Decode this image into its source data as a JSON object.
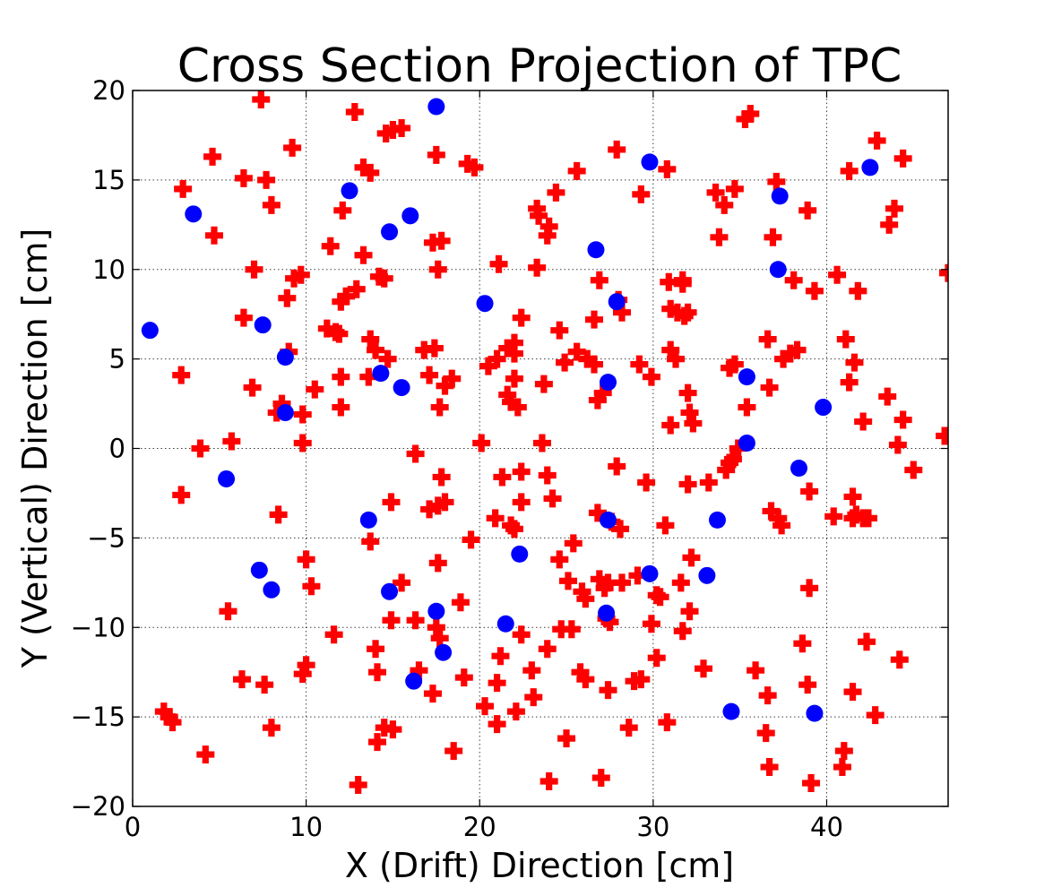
{
  "chart_data": {
    "type": "scatter",
    "title": "Cross Section Projection of TPC",
    "xlabel": "X (Drift) Direction [cm]",
    "ylabel": "Y (Vertical) Direction [cm]",
    "xlim": [
      0,
      47
    ],
    "ylim": [
      -20,
      20
    ],
    "x_ticks": [
      0,
      10,
      20,
      30,
      40
    ],
    "y_ticks": [
      -20,
      -15,
      -10,
      -5,
      0,
      5,
      10,
      15,
      20
    ],
    "x_tick_labels": [
      "0",
      "10",
      "20",
      "30",
      "40"
    ],
    "y_tick_labels": [
      "−20",
      "−15",
      "−10",
      "−5",
      "0",
      "5",
      "10",
      "15",
      "20"
    ],
    "grid": true,
    "legend": "none",
    "series": [
      {
        "marker": "plus",
        "color": "#ff0000",
        "points": [
          [
            7.4,
            19.5
          ],
          [
            12.8,
            18.8
          ],
          [
            14.6,
            17.6
          ],
          [
            15.0,
            17.8
          ],
          [
            15.5,
            17.9
          ],
          [
            17.5,
            16.4
          ],
          [
            9.2,
            16.8
          ],
          [
            4.6,
            16.3
          ],
          [
            6.4,
            15.1
          ],
          [
            7.7,
            15.0
          ],
          [
            13.3,
            15.7
          ],
          [
            13.7,
            15.4
          ],
          [
            19.3,
            15.9
          ],
          [
            19.7,
            15.7
          ],
          [
            2.9,
            14.5
          ],
          [
            8.0,
            13.6
          ],
          [
            12.1,
            13.3
          ],
          [
            23.3,
            13.4
          ],
          [
            23.4,
            13.0
          ],
          [
            24.4,
            14.3
          ],
          [
            24.0,
            12.4
          ],
          [
            23.9,
            11.9
          ],
          [
            17.3,
            11.5
          ],
          [
            17.8,
            11.6
          ],
          [
            4.7,
            11.9
          ],
          [
            11.4,
            11.3
          ],
          [
            13.3,
            10.8
          ],
          [
            7.0,
            10.0
          ],
          [
            9.3,
            9.5
          ],
          [
            9.7,
            9.7
          ],
          [
            17.6,
            10.0
          ],
          [
            21.1,
            10.3
          ],
          [
            23.3,
            10.1
          ],
          [
            14.5,
            9.5
          ],
          [
            14.2,
            9.6
          ],
          [
            8.9,
            8.4
          ],
          [
            12.0,
            8.2
          ],
          [
            12.3,
            8.5
          ],
          [
            12.9,
            8.9
          ],
          [
            6.4,
            7.3
          ],
          [
            11.2,
            6.7
          ],
          [
            11.7,
            6.5
          ],
          [
            11.9,
            6.4
          ],
          [
            13.7,
            6.1
          ],
          [
            14.0,
            5.5
          ],
          [
            16.8,
            5.5
          ],
          [
            17.4,
            5.6
          ],
          [
            21.6,
            5.6
          ],
          [
            22.0,
            5.9
          ],
          [
            22.0,
            5.3
          ],
          [
            22.4,
            7.3
          ],
          [
            24.6,
            6.6
          ],
          [
            14.7,
            5.0
          ],
          [
            9.0,
            5.4
          ],
          [
            6.9,
            3.4
          ],
          [
            12.0,
            4.0
          ],
          [
            13.6,
            4.0
          ],
          [
            17.1,
            4.1
          ],
          [
            18.0,
            3.5
          ],
          [
            18.4,
            3.9
          ],
          [
            20.5,
            4.6
          ],
          [
            21.0,
            5.0
          ],
          [
            21.6,
            3.0
          ],
          [
            21.8,
            2.6
          ],
          [
            22.0,
            3.9
          ],
          [
            22.2,
            2.3
          ],
          [
            23.7,
            3.6
          ],
          [
            24.9,
            4.8
          ],
          [
            25.6,
            5.4
          ],
          [
            26.2,
            5.0
          ],
          [
            26.6,
            4.7
          ],
          [
            2.8,
            4.1
          ],
          [
            8.6,
            2.5
          ],
          [
            8.3,
            2.0
          ],
          [
            9.8,
            1.9
          ],
          [
            10.5,
            3.3
          ],
          [
            12.0,
            2.3
          ],
          [
            17.7,
            2.3
          ],
          [
            9.8,
            0.3
          ],
          [
            5.7,
            0.4
          ],
          [
            3.9,
            0.0
          ],
          [
            16.3,
            -0.3
          ],
          [
            20.1,
            0.3
          ],
          [
            23.6,
            0.3
          ],
          [
            2.8,
            -2.6
          ],
          [
            8.4,
            -3.7
          ],
          [
            14.9,
            -3.0
          ],
          [
            17.1,
            -3.4
          ],
          [
            17.6,
            -3.2
          ],
          [
            17.8,
            -1.6
          ],
          [
            18.0,
            -3.0
          ],
          [
            20.9,
            -3.9
          ],
          [
            21.3,
            -1.6
          ],
          [
            22.4,
            -1.3
          ],
          [
            22.4,
            -3.0
          ],
          [
            23.9,
            -1.5
          ],
          [
            24.2,
            -2.8
          ],
          [
            21.8,
            -4.3
          ],
          [
            22.0,
            -4.5
          ],
          [
            25.4,
            -5.3
          ],
          [
            19.5,
            -5.1
          ],
          [
            13.7,
            -5.2
          ],
          [
            5.5,
            -9.1
          ],
          [
            10.0,
            -6.2
          ],
          [
            10.3,
            -7.7
          ],
          [
            15.5,
            -7.5
          ],
          [
            17.6,
            -6.4
          ],
          [
            24.6,
            -6.2
          ],
          [
            25.1,
            -7.4
          ],
          [
            25.9,
            -8.0
          ],
          [
            26.1,
            -8.4
          ],
          [
            26.9,
            -7.3
          ],
          [
            27.2,
            -7.8
          ],
          [
            14.9,
            -9.6
          ],
          [
            16.3,
            -9.6
          ],
          [
            17.5,
            -10.0
          ],
          [
            17.7,
            -10.6
          ],
          [
            18.9,
            -8.6
          ],
          [
            11.6,
            -10.4
          ],
          [
            14.0,
            -11.2
          ],
          [
            21.2,
            -11.6
          ],
          [
            22.4,
            -10.4
          ],
          [
            23.9,
            -11.2
          ],
          [
            24.7,
            -10.1
          ],
          [
            25.3,
            -10.1
          ],
          [
            10.0,
            -12.1
          ],
          [
            9.8,
            -12.6
          ],
          [
            6.3,
            -12.9
          ],
          [
            7.6,
            -13.2
          ],
          [
            14.1,
            -12.5
          ],
          [
            16.5,
            -12.4
          ],
          [
            17.3,
            -13.7
          ],
          [
            19.1,
            -12.8
          ],
          [
            21.0,
            -13.1
          ],
          [
            23.0,
            -12.4
          ],
          [
            23.1,
            -13.9
          ],
          [
            25.8,
            -12.5
          ],
          [
            26.1,
            -12.9
          ],
          [
            1.8,
            -14.7
          ],
          [
            2.1,
            -15.0
          ],
          [
            2.3,
            -15.3
          ],
          [
            8.0,
            -15.6
          ],
          [
            14.1,
            -16.4
          ],
          [
            14.5,
            -15.6
          ],
          [
            15.0,
            -15.7
          ],
          [
            20.3,
            -14.4
          ],
          [
            21.0,
            -15.4
          ],
          [
            22.1,
            -14.7
          ],
          [
            25.0,
            -16.2
          ],
          [
            18.5,
            -16.9
          ],
          [
            4.2,
            -17.1
          ],
          [
            13.0,
            -18.8
          ],
          [
            24.0,
            -18.6
          ],
          [
            27.0,
            -18.4
          ],
          [
            35.3,
            18.4
          ],
          [
            35.6,
            18.7
          ],
          [
            27.9,
            16.7
          ],
          [
            25.6,
            15.5
          ],
          [
            30.8,
            15.6
          ],
          [
            29.3,
            14.2
          ],
          [
            33.6,
            14.3
          ],
          [
            34.7,
            14.5
          ],
          [
            34.1,
            13.6
          ],
          [
            33.8,
            11.8
          ],
          [
            37.1,
            14.9
          ],
          [
            36.9,
            11.8
          ],
          [
            38.9,
            13.3
          ],
          [
            40.6,
            9.7
          ],
          [
            39.3,
            8.8
          ],
          [
            38.1,
            9.4
          ],
          [
            41.8,
            8.8
          ],
          [
            41.3,
            15.5
          ],
          [
            42.9,
            17.2
          ],
          [
            44.4,
            16.2
          ],
          [
            43.9,
            13.4
          ],
          [
            43.6,
            12.5
          ],
          [
            30.9,
            9.3
          ],
          [
            31.7,
            9.2
          ],
          [
            31.7,
            9.4
          ],
          [
            26.9,
            9.4
          ],
          [
            31.0,
            7.8
          ],
          [
            31.4,
            7.6
          ],
          [
            31.8,
            7.4
          ],
          [
            32.0,
            7.6
          ],
          [
            26.6,
            7.2
          ],
          [
            28.2,
            7.6
          ],
          [
            28.0,
            8.3
          ],
          [
            31.0,
            5.5
          ],
          [
            31.3,
            5.0
          ],
          [
            29.9,
            4.0
          ],
          [
            29.2,
            4.7
          ],
          [
            34.4,
            4.5
          ],
          [
            34.7,
            4.7
          ],
          [
            36.6,
            6.1
          ],
          [
            37.5,
            5.0
          ],
          [
            37.9,
            5.3
          ],
          [
            38.3,
            5.5
          ],
          [
            41.1,
            6.1
          ],
          [
            41.6,
            4.8
          ],
          [
            41.3,
            3.7
          ],
          [
            43.5,
            2.9
          ],
          [
            44.4,
            1.6
          ],
          [
            44.1,
            0.2
          ],
          [
            45.0,
            -1.2
          ],
          [
            42.1,
            1.5
          ],
          [
            36.7,
            3.4
          ],
          [
            35.4,
            2.3
          ],
          [
            32.0,
            3.1
          ],
          [
            32.1,
            2.0
          ],
          [
            32.3,
            1.4
          ],
          [
            31.0,
            1.3
          ],
          [
            26.8,
            2.7
          ],
          [
            27.1,
            3.1
          ],
          [
            29.6,
            -1.9
          ],
          [
            27.9,
            -1.0
          ],
          [
            26.8,
            -3.6
          ],
          [
            27.6,
            -4.1
          ],
          [
            28.1,
            -4.5
          ],
          [
            30.7,
            -4.3
          ],
          [
            32.0,
            -2.0
          ],
          [
            33.2,
            -1.9
          ],
          [
            34.2,
            -1.2
          ],
          [
            34.4,
            -0.8
          ],
          [
            34.6,
            -0.6
          ],
          [
            34.9,
            0.0
          ],
          [
            36.8,
            -3.5
          ],
          [
            37.2,
            -3.9
          ],
          [
            37.4,
            -4.3
          ],
          [
            39.0,
            -2.4
          ],
          [
            40.4,
            -3.8
          ],
          [
            41.5,
            -3.9
          ],
          [
            41.7,
            -3.7
          ],
          [
            42.1,
            -3.9
          ],
          [
            42.4,
            -3.9
          ],
          [
            41.5,
            -2.7
          ],
          [
            32.2,
            -6.1
          ],
          [
            31.6,
            -7.5
          ],
          [
            30.2,
            -8.2
          ],
          [
            30.4,
            -8.3
          ],
          [
            28.2,
            -7.5
          ],
          [
            27.4,
            -7.5
          ],
          [
            29.1,
            -7.1
          ],
          [
            27.3,
            -9.5
          ],
          [
            27.5,
            -9.7
          ],
          [
            32.1,
            -9.1
          ],
          [
            31.7,
            -10.2
          ],
          [
            29.9,
            -9.8
          ],
          [
            30.2,
            -11.7
          ],
          [
            28.9,
            -13.0
          ],
          [
            29.3,
            -12.9
          ],
          [
            27.4,
            -13.5
          ],
          [
            28.6,
            -15.6
          ],
          [
            30.8,
            -15.3
          ],
          [
            32.9,
            -12.3
          ],
          [
            35.9,
            -12.4
          ],
          [
            36.6,
            -13.8
          ],
          [
            38.6,
            -10.9
          ],
          [
            39.0,
            -7.8
          ],
          [
            38.9,
            -13.2
          ],
          [
            41.5,
            -13.6
          ],
          [
            42.3,
            -10.8
          ],
          [
            44.2,
            -11.8
          ],
          [
            42.8,
            -14.9
          ],
          [
            36.5,
            -15.9
          ],
          [
            36.7,
            -17.8
          ],
          [
            41.0,
            -16.9
          ],
          [
            40.9,
            -17.8
          ],
          [
            39.1,
            -18.7
          ],
          [
            47.0,
            9.8
          ],
          [
            46.8,
            0.7
          ]
        ]
      },
      {
        "marker": "circle",
        "color": "#0000ff",
        "points": [
          [
            1.0,
            6.6
          ],
          [
            3.5,
            13.1
          ],
          [
            7.5,
            6.9
          ],
          [
            8.8,
            5.1
          ],
          [
            8.8,
            2.0
          ],
          [
            5.4,
            -1.7
          ],
          [
            7.3,
            -6.8
          ],
          [
            8.0,
            -7.9
          ],
          [
            12.5,
            14.4
          ],
          [
            14.8,
            12.1
          ],
          [
            16.0,
            13.0
          ],
          [
            14.3,
            4.2
          ],
          [
            15.5,
            3.4
          ],
          [
            17.5,
            19.1
          ],
          [
            13.6,
            -4.0
          ],
          [
            14.8,
            -8.0
          ],
          [
            17.5,
            -9.1
          ],
          [
            17.9,
            -11.4
          ],
          [
            16.2,
            -13.0
          ],
          [
            20.3,
            8.1
          ],
          [
            21.5,
            -9.8
          ],
          [
            22.3,
            -5.9
          ],
          [
            26.7,
            11.1
          ],
          [
            27.9,
            8.2
          ],
          [
            27.4,
            3.7
          ],
          [
            27.4,
            -4.0
          ],
          [
            27.3,
            -9.2
          ],
          [
            29.8,
            16.0
          ],
          [
            29.8,
            -7.0
          ],
          [
            33.1,
            -7.1
          ],
          [
            33.7,
            -4.0
          ],
          [
            34.5,
            -14.7
          ],
          [
            35.4,
            4.0
          ],
          [
            35.4,
            0.3
          ],
          [
            37.2,
            10.0
          ],
          [
            37.3,
            14.1
          ],
          [
            38.4,
            -1.1
          ],
          [
            39.3,
            -14.8
          ],
          [
            39.8,
            2.3
          ],
          [
            42.5,
            15.7
          ]
        ]
      }
    ]
  }
}
